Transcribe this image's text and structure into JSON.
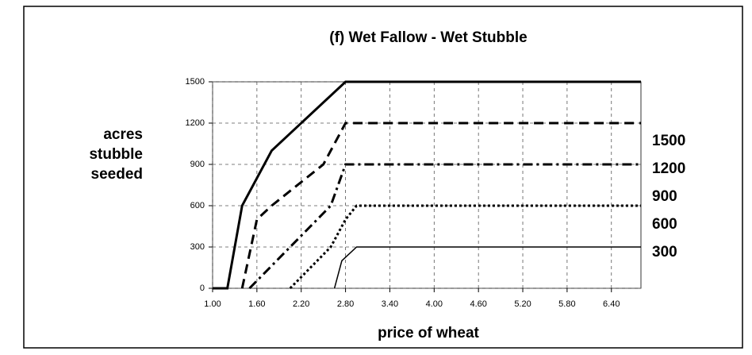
{
  "chart_data": {
    "type": "line",
    "title": "(f) Wet Fallow - Wet Stubble",
    "ylabel": [
      "acres",
      "stubble",
      "seeded"
    ],
    "xlabel": "price of wheat",
    "xlim": [
      1.0,
      6.8
    ],
    "ylim": [
      0,
      1500
    ],
    "xticks": [
      {
        "value": 1.0,
        "label": "1.00"
      },
      {
        "value": 1.6,
        "label": "1.60"
      },
      {
        "value": 2.2,
        "label": "2.20"
      },
      {
        "value": 2.8,
        "label": "2.80"
      },
      {
        "value": 3.4,
        "label": "3.40"
      },
      {
        "value": 4.0,
        "label": "4.00"
      },
      {
        "value": 4.6,
        "label": "4.60"
      },
      {
        "value": 5.2,
        "label": "5.20"
      },
      {
        "value": 5.8,
        "label": "5.80"
      },
      {
        "value": 6.4,
        "label": "6.40"
      }
    ],
    "yticks": [
      0,
      300,
      600,
      900,
      1200,
      1500
    ],
    "grid": true,
    "legend": "right",
    "series": [
      {
        "name": "1500",
        "color": "#000000",
        "width": 3,
        "dash": "none",
        "x": [
          1.0,
          1.2,
          1.4,
          1.8,
          2.8,
          6.8
        ],
        "values": [
          0,
          0,
          600,
          1000,
          1500,
          1500
        ]
      },
      {
        "name": "1200",
        "color": "#000000",
        "width": 3,
        "dash": "12,7",
        "x": [
          1.4,
          1.6,
          1.8,
          2.5,
          2.8,
          6.8
        ],
        "values": [
          0,
          500,
          600,
          900,
          1200,
          1200
        ]
      },
      {
        "name": "900",
        "color": "#000000",
        "width": 3,
        "dash": "12,5,3,5",
        "x": [
          1.5,
          2.6,
          2.8,
          6.8
        ],
        "values": [
          0,
          600,
          900,
          900
        ]
      },
      {
        "name": "600",
        "color": "#000000",
        "width": 3,
        "dash": "3,3",
        "x": [
          2.05,
          2.6,
          2.8,
          2.95,
          6.8
        ],
        "values": [
          0,
          300,
          500,
          600,
          600
        ]
      },
      {
        "name": "300",
        "color": "#000000",
        "width": 1.5,
        "dash": "none",
        "x": [
          2.65,
          2.75,
          2.95,
          6.8
        ],
        "values": [
          0,
          200,
          300,
          300
        ]
      }
    ]
  }
}
